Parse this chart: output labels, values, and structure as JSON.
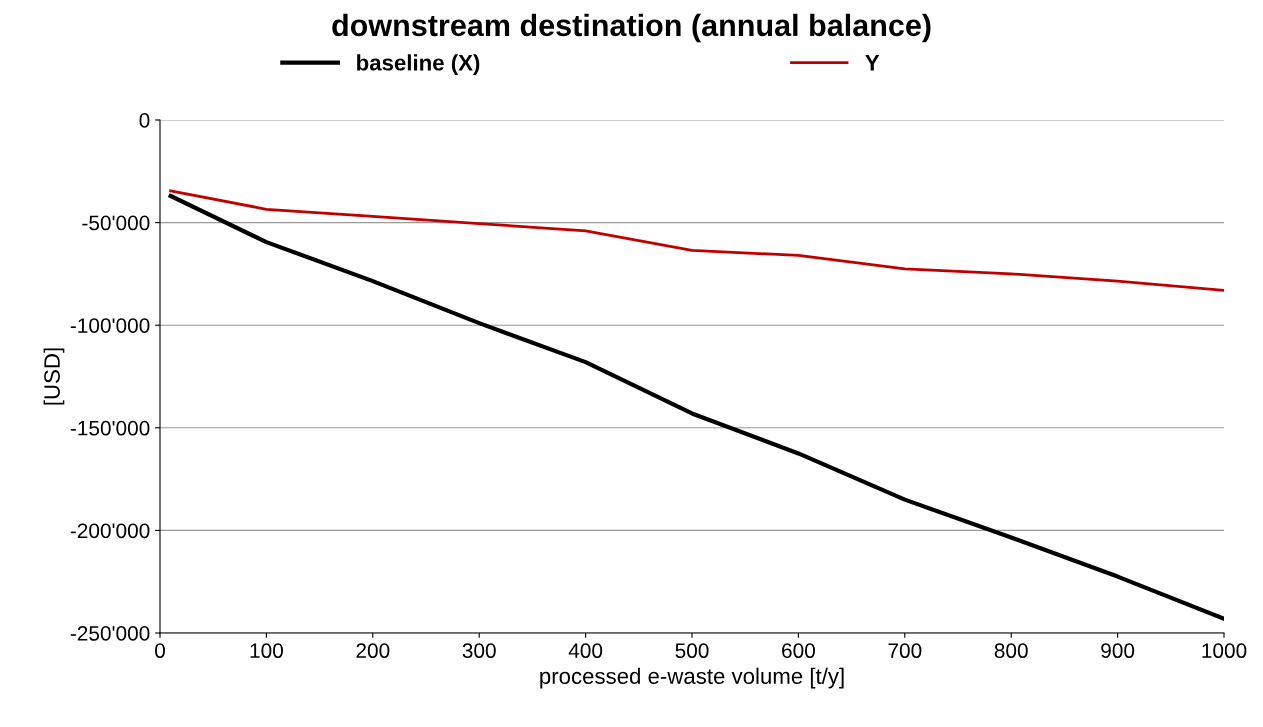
{
  "chart_data": {
    "type": "line",
    "title": "downstream destination (annual balance)",
    "xlabel": "processed e-waste volume [t/y]",
    "ylabel": "[USD]",
    "x": [
      10,
      100,
      200,
      300,
      400,
      500,
      600,
      700,
      800,
      900,
      1000
    ],
    "series": [
      {
        "name": "baseline (X)",
        "color": "#000000",
        "values": [
          -37000,
          -59500,
          -78500,
          -99000,
          -118000,
          -143000,
          -162500,
          -185000,
          -203500,
          -222500,
          -243000
        ]
      },
      {
        "name": "Y",
        "color": "#c00000",
        "values": [
          -34500,
          -43500,
          -47000,
          -50500,
          -54000,
          -63500,
          -66000,
          -72500,
          -75000,
          -78500,
          -83000
        ]
      }
    ],
    "xlim": [
      0,
      1000
    ],
    "xticks": [
      0,
      100,
      200,
      300,
      400,
      500,
      600,
      700,
      800,
      900,
      1000
    ],
    "ylim": [
      -250000,
      0
    ],
    "yticks": [
      {
        "value": -250000,
        "label": "-250'000"
      },
      {
        "value": -200000,
        "label": "-200'000"
      },
      {
        "value": -150000,
        "label": "-150'000"
      },
      {
        "value": -100000,
        "label": "-100'000"
      },
      {
        "value": -50000,
        "label": "-50'000"
      },
      0
    ],
    "grid": "y",
    "legend": "top",
    "marker": "none",
    "line_style": "solid"
  }
}
